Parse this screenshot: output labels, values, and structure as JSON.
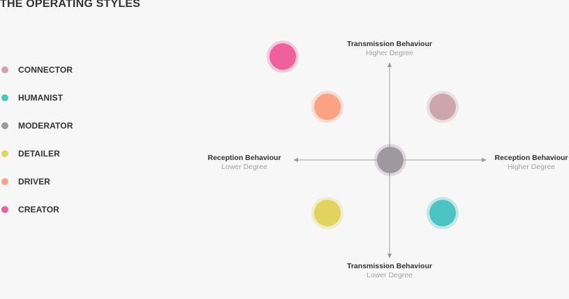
{
  "title": "THE OPERATING STYLES",
  "styles": [
    {
      "label": "CONNECTOR",
      "color": "#cca6ac"
    },
    {
      "label": "HUMANIST",
      "color": "#4dc4c4"
    },
    {
      "label": "MODERATOR",
      "color": "#9e999e"
    },
    {
      "label": "DETAILER",
      "color": "#e0d35e"
    },
    {
      "label": "DRIVER",
      "color": "#fba283"
    },
    {
      "label": "CREATOR",
      "color": "#ef609d"
    }
  ],
  "axes": {
    "top": {
      "title": "Transmission Behaviour",
      "sub": "Higher Degree"
    },
    "bottom": {
      "title": "Transmission Behaviour",
      "sub": "Lower Degree"
    },
    "left": {
      "title": "Reception Behaviour",
      "sub": "Lower Degree"
    },
    "right": {
      "title": "Reception Behaviour",
      "sub": "Higher Degree"
    }
  },
  "axis_color": "#9a9a9a"
}
